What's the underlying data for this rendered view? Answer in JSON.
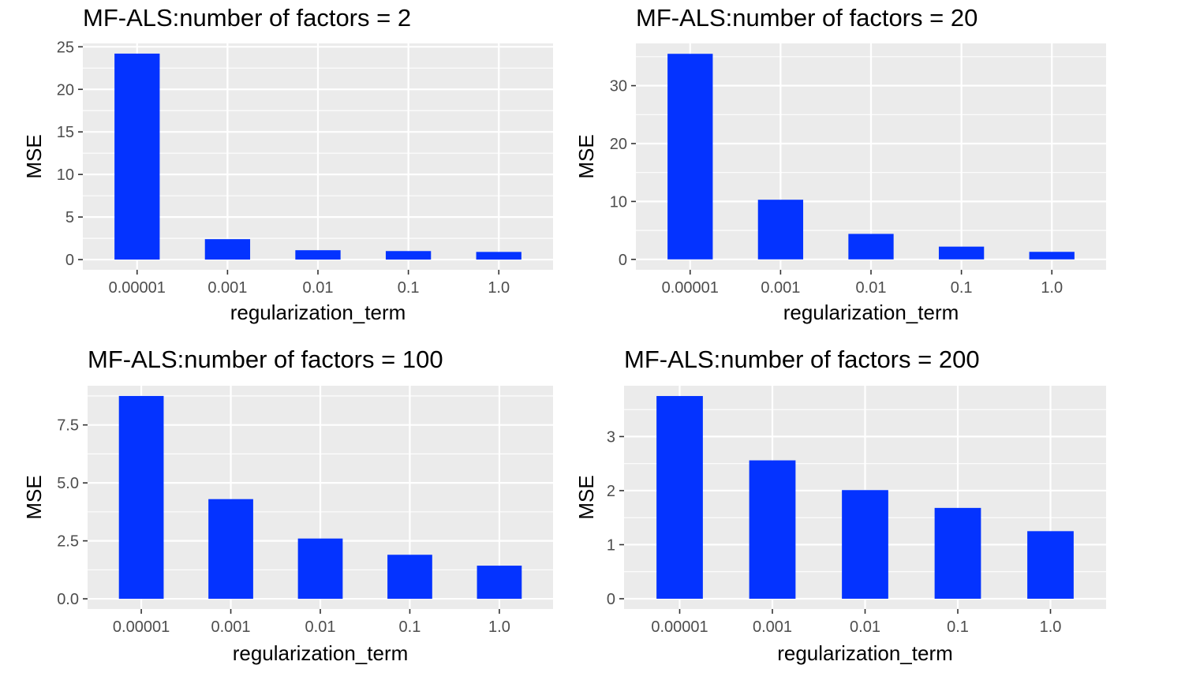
{
  "figure": {
    "bar_color": "#0433ff",
    "panel_background": "#ebebeb",
    "grid_color": "#ffffff"
  },
  "chart_data": [
    {
      "type": "bar",
      "title": "MF-ALS:number of factors = 2",
      "xlabel": "regularization_term",
      "ylabel": "MSE",
      "categories": [
        "0.00001",
        "0.001",
        "0.01",
        "0.1",
        "1.0"
      ],
      "values": [
        24.2,
        2.4,
        1.1,
        1.0,
        0.9
      ],
      "ylim": [
        -1.2,
        25.4
      ],
      "yticks": [
        0,
        5,
        10,
        15,
        20,
        25
      ],
      "ytick_labels": [
        "0",
        "5",
        "10",
        "15",
        "20",
        "25"
      ],
      "grid": true,
      "legend": "none"
    },
    {
      "type": "bar",
      "title": "MF-ALS:number of factors = 20",
      "xlabel": "regularization_term",
      "ylabel": "MSE",
      "categories": [
        "0.00001",
        "0.001",
        "0.01",
        "0.1",
        "1.0"
      ],
      "values": [
        35.5,
        10.3,
        4.4,
        2.2,
        1.3
      ],
      "ylim": [
        -1.8,
        37.3
      ],
      "yticks": [
        0,
        10,
        20,
        30
      ],
      "ytick_labels": [
        "0",
        "10",
        "20",
        "30"
      ],
      "grid": true,
      "legend": "none"
    },
    {
      "type": "bar",
      "title": "MF-ALS:number of factors = 100",
      "xlabel": "regularization_term",
      "ylabel": "MSE",
      "categories": [
        "0.00001",
        "0.001",
        "0.01",
        "0.1",
        "1.0"
      ],
      "values": [
        8.75,
        4.3,
        2.6,
        1.9,
        1.43
      ],
      "ylim": [
        -0.44,
        9.19
      ],
      "yticks": [
        0,
        2.5,
        5,
        7.5
      ],
      "ytick_labels": [
        "0.0",
        "2.5",
        "5.0",
        "7.5"
      ],
      "grid": true,
      "legend": "none"
    },
    {
      "type": "bar",
      "title": "MF-ALS:number of factors = 200",
      "xlabel": "regularization_term",
      "ylabel": "MSE",
      "categories": [
        "0.00001",
        "0.001",
        "0.01",
        "0.1",
        "1.0"
      ],
      "values": [
        3.75,
        2.56,
        2.01,
        1.68,
        1.25
      ],
      "ylim": [
        -0.19,
        3.94
      ],
      "yticks": [
        0,
        1,
        2,
        3
      ],
      "ytick_labels": [
        "0",
        "1",
        "2",
        "3"
      ],
      "grid": true,
      "legend": "none"
    }
  ]
}
